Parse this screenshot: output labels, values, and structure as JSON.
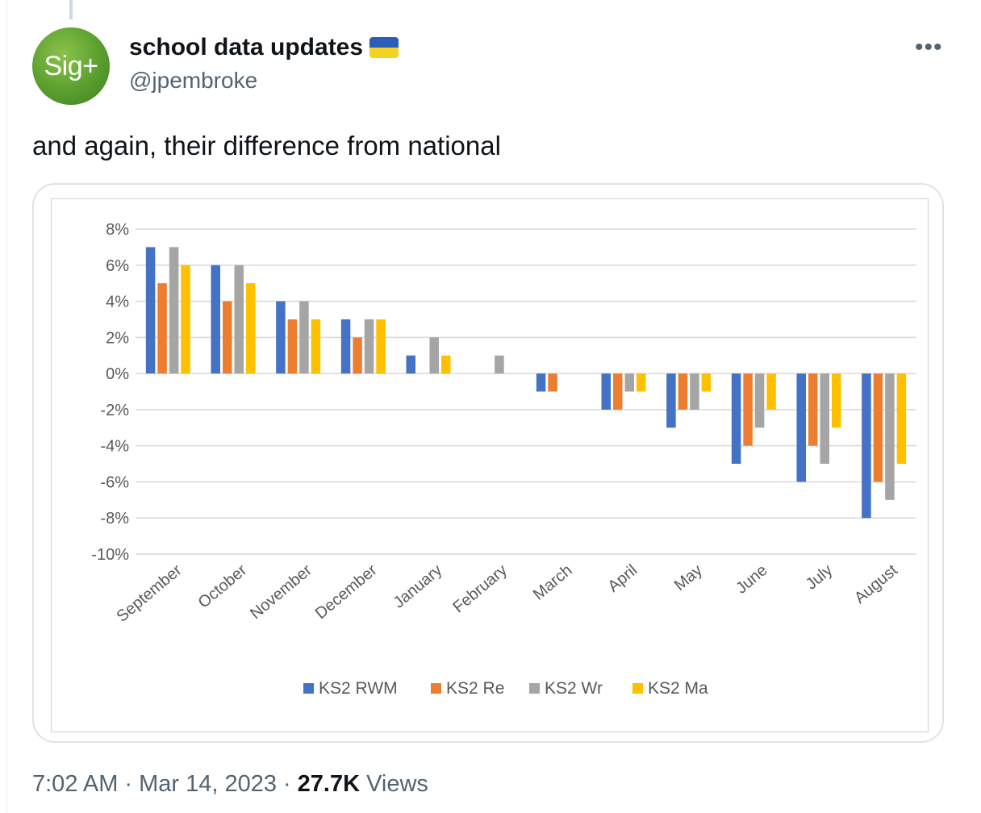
{
  "author": {
    "avatar_text": "Sig+",
    "display_name": "school data updates",
    "flag_icon": "ukraine-flag-icon",
    "handle": "@jpembroke"
  },
  "more_icon": "more-horizontal-icon",
  "more_glyph": "•••",
  "tweet": {
    "text": "and again, their difference from national"
  },
  "meta": {
    "time": "7:02 AM",
    "separator": "·",
    "date": "Mar 14, 2023",
    "views_count": "27.7K",
    "views_label": "Views"
  },
  "chart_data": {
    "type": "bar",
    "categories": [
      "September",
      "October",
      "November",
      "December",
      "January",
      "February",
      "March",
      "April",
      "May",
      "June",
      "July",
      "August"
    ],
    "series": [
      {
        "name": "KS2 RWM",
        "color": "#4472c4",
        "values": [
          7,
          6,
          4,
          3,
          1,
          0,
          -1,
          -2,
          -3,
          -5,
          -6,
          -8
        ]
      },
      {
        "name": "KS2 Re",
        "color": "#ed7d31",
        "values": [
          5,
          4,
          3,
          2,
          0,
          0,
          -1,
          -2,
          -2,
          -4,
          -4,
          -6
        ]
      },
      {
        "name": "KS2 Wr",
        "color": "#a5a5a5",
        "values": [
          7,
          6,
          4,
          3,
          2,
          1,
          0,
          -1,
          -2,
          -3,
          -5,
          -7
        ]
      },
      {
        "name": "KS2 Ma",
        "color": "#ffc000",
        "values": [
          6,
          5,
          3,
          3,
          1,
          0,
          0,
          -1,
          -1,
          -2,
          -3,
          -5
        ]
      }
    ],
    "yticks": [
      "8%",
      "6%",
      "4%",
      "2%",
      "0%",
      "-2%",
      "-4%",
      "-6%",
      "-8%",
      "-10%"
    ],
    "ylim": [
      -10,
      8
    ],
    "ystep": 2,
    "grid": true,
    "legend_position": "bottom"
  }
}
